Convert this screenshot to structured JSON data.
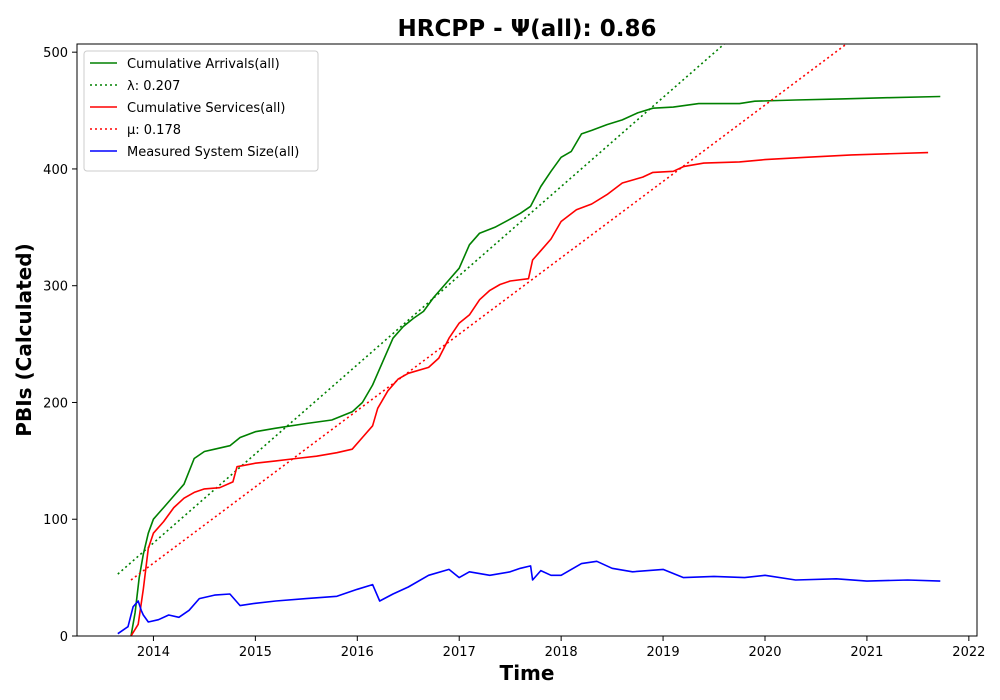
{
  "chart_data": {
    "type": "line",
    "title": "HRCPP -  Ψ(all): 0.86",
    "xlabel": "Time",
    "ylabel": "PBIs (Calculated)",
    "xlim": [
      2013.25,
      2022.08
    ],
    "ylim": [
      0,
      507
    ],
    "x_ticks": [
      2014,
      2015,
      2016,
      2017,
      2018,
      2019,
      2020,
      2021,
      2022
    ],
    "y_ticks": [
      0,
      100,
      200,
      300,
      400,
      500
    ],
    "grid": false,
    "legend_position": "upper-left",
    "series": [
      {
        "name": "Cumulative Arrivals(all)",
        "style": "solid",
        "color": "#008000",
        "points": [
          [
            2013.78,
            0
          ],
          [
            2013.82,
            20
          ],
          [
            2013.86,
            50
          ],
          [
            2013.9,
            70
          ],
          [
            2013.95,
            88
          ],
          [
            2014.0,
            100
          ],
          [
            2014.05,
            105
          ],
          [
            2014.1,
            110
          ],
          [
            2014.2,
            120
          ],
          [
            2014.3,
            130
          ],
          [
            2014.4,
            152
          ],
          [
            2014.5,
            158
          ],
          [
            2014.6,
            160
          ],
          [
            2014.75,
            163
          ],
          [
            2014.85,
            170
          ],
          [
            2015.0,
            175
          ],
          [
            2015.2,
            178
          ],
          [
            2015.5,
            182
          ],
          [
            2015.75,
            185
          ],
          [
            2015.95,
            192
          ],
          [
            2016.05,
            200
          ],
          [
            2016.15,
            215
          ],
          [
            2016.25,
            235
          ],
          [
            2016.35,
            255
          ],
          [
            2016.45,
            265
          ],
          [
            2016.55,
            272
          ],
          [
            2016.65,
            278
          ],
          [
            2016.75,
            290
          ],
          [
            2016.9,
            305
          ],
          [
            2017.0,
            315
          ],
          [
            2017.1,
            335
          ],
          [
            2017.2,
            345
          ],
          [
            2017.35,
            350
          ],
          [
            2017.5,
            357
          ],
          [
            2017.6,
            362
          ],
          [
            2017.7,
            368
          ],
          [
            2017.8,
            385
          ],
          [
            2017.9,
            398
          ],
          [
            2018.0,
            410
          ],
          [
            2018.1,
            415
          ],
          [
            2018.2,
            430
          ],
          [
            2018.3,
            433
          ],
          [
            2018.45,
            438
          ],
          [
            2018.6,
            442
          ],
          [
            2018.75,
            448
          ],
          [
            2018.9,
            452
          ],
          [
            2019.1,
            453
          ],
          [
            2019.35,
            456
          ],
          [
            2019.75,
            456
          ],
          [
            2019.9,
            458
          ],
          [
            2020.3,
            459
          ],
          [
            2020.75,
            460
          ],
          [
            2021.2,
            461
          ],
          [
            2021.72,
            462
          ]
        ]
      },
      {
        "name": "λ: 0.207",
        "style": "dotted",
        "color": "#008000",
        "points": [
          [
            2013.65,
            53
          ],
          [
            2019.6,
            507
          ]
        ]
      },
      {
        "name": "Cumulative Services(all)",
        "style": "solid",
        "color": "#ff0000",
        "points": [
          [
            2013.78,
            0
          ],
          [
            2013.85,
            10
          ],
          [
            2013.9,
            40
          ],
          [
            2013.95,
            75
          ],
          [
            2014.0,
            88
          ],
          [
            2014.1,
            98
          ],
          [
            2014.2,
            110
          ],
          [
            2014.3,
            118
          ],
          [
            2014.4,
            123
          ],
          [
            2014.5,
            126
          ],
          [
            2014.65,
            127
          ],
          [
            2014.78,
            132
          ],
          [
            2014.82,
            145
          ],
          [
            2015.0,
            148
          ],
          [
            2015.2,
            150
          ],
          [
            2015.4,
            152
          ],
          [
            2015.6,
            154
          ],
          [
            2015.8,
            157
          ],
          [
            2015.95,
            160
          ],
          [
            2016.05,
            170
          ],
          [
            2016.15,
            180
          ],
          [
            2016.2,
            195
          ],
          [
            2016.3,
            210
          ],
          [
            2016.4,
            220
          ],
          [
            2016.5,
            225
          ],
          [
            2016.7,
            230
          ],
          [
            2016.8,
            238
          ],
          [
            2016.9,
            255
          ],
          [
            2017.0,
            268
          ],
          [
            2017.1,
            275
          ],
          [
            2017.2,
            288
          ],
          [
            2017.3,
            296
          ],
          [
            2017.4,
            301
          ],
          [
            2017.5,
            304
          ],
          [
            2017.68,
            306
          ],
          [
            2017.72,
            322
          ],
          [
            2017.8,
            330
          ],
          [
            2017.9,
            340
          ],
          [
            2018.0,
            355
          ],
          [
            2018.15,
            365
          ],
          [
            2018.3,
            370
          ],
          [
            2018.45,
            378
          ],
          [
            2018.6,
            388
          ],
          [
            2018.8,
            393
          ],
          [
            2018.9,
            397
          ],
          [
            2019.1,
            398
          ],
          [
            2019.2,
            402
          ],
          [
            2019.4,
            405
          ],
          [
            2019.75,
            406
          ],
          [
            2020.0,
            408
          ],
          [
            2020.4,
            410
          ],
          [
            2020.85,
            412
          ],
          [
            2021.2,
            413
          ],
          [
            2021.6,
            414
          ]
        ]
      },
      {
        "name": "μ: 0.178",
        "style": "dotted",
        "color": "#ff0000",
        "points": [
          [
            2013.78,
            48
          ],
          [
            2020.8,
            507
          ]
        ]
      },
      {
        "name": "Measured System Size(all)",
        "style": "solid",
        "color": "#0000ff",
        "points": [
          [
            2013.65,
            2
          ],
          [
            2013.7,
            5
          ],
          [
            2013.75,
            8
          ],
          [
            2013.8,
            25
          ],
          [
            2013.85,
            30
          ],
          [
            2013.88,
            22
          ],
          [
            2013.9,
            18
          ],
          [
            2013.95,
            12
          ],
          [
            2014.05,
            14
          ],
          [
            2014.15,
            18
          ],
          [
            2014.25,
            16
          ],
          [
            2014.35,
            22
          ],
          [
            2014.45,
            32
          ],
          [
            2014.6,
            35
          ],
          [
            2014.75,
            36
          ],
          [
            2014.85,
            26
          ],
          [
            2015.0,
            28
          ],
          [
            2015.2,
            30
          ],
          [
            2015.5,
            32
          ],
          [
            2015.8,
            34
          ],
          [
            2016.0,
            40
          ],
          [
            2016.15,
            44
          ],
          [
            2016.22,
            30
          ],
          [
            2016.35,
            36
          ],
          [
            2016.5,
            42
          ],
          [
            2016.7,
            52
          ],
          [
            2016.9,
            57
          ],
          [
            2017.0,
            50
          ],
          [
            2017.1,
            55
          ],
          [
            2017.3,
            52
          ],
          [
            2017.5,
            55
          ],
          [
            2017.6,
            58
          ],
          [
            2017.7,
            60
          ],
          [
            2017.72,
            48
          ],
          [
            2017.8,
            56
          ],
          [
            2017.9,
            52
          ],
          [
            2018.0,
            52
          ],
          [
            2018.1,
            57
          ],
          [
            2018.2,
            62
          ],
          [
            2018.35,
            64
          ],
          [
            2018.5,
            58
          ],
          [
            2018.7,
            55
          ],
          [
            2019.0,
            57
          ],
          [
            2019.2,
            50
          ],
          [
            2019.5,
            51
          ],
          [
            2019.8,
            50
          ],
          [
            2020.0,
            52
          ],
          [
            2020.3,
            48
          ],
          [
            2020.7,
            49
          ],
          [
            2021.0,
            47
          ],
          [
            2021.4,
            48
          ],
          [
            2021.72,
            47
          ]
        ]
      }
    ]
  }
}
